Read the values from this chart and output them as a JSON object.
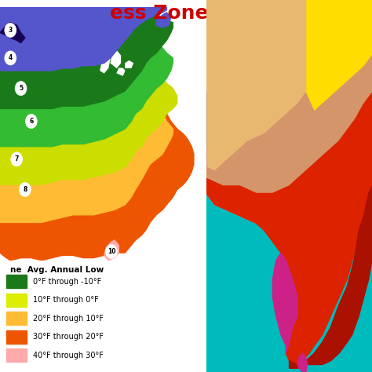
{
  "title": "ess Zone Map",
  "title_color": "#cc0000",
  "title_fontsize": 18,
  "background_color": "#ffffff",
  "fig_width": 4.74,
  "fig_height": 4.74,
  "dpi": 100,
  "legend_title": "ne  Avg. Annual Low",
  "legend_items": [
    {
      "color": "#1a7a1a",
      "label": "0°F through -10°F"
    },
    {
      "color": "#ddee00",
      "label": "10°F through 0°F"
    },
    {
      "color": "#ffcc33",
      "label": "20°F through 10°F"
    },
    {
      "color": "#ee5500",
      "label": "30°F through 20°F"
    },
    {
      "color": "#ffaaaa",
      "label": "40°F through 30°F"
    }
  ],
  "us_zones": {
    "zone3_color": "#1a0055",
    "zone4_color": "#5555cc",
    "zone5_color": "#1a7a1a",
    "zone6_color": "#33bb33",
    "zone7_color": "#ccdd00",
    "zone8_color": "#ffbb33",
    "zone9_color": "#ee5500",
    "zone10_color": "#ffaaaa"
  },
  "india_colors": {
    "background": "#cccccc",
    "ocean": "#00bbbb",
    "north_yellow": "#ffdd00",
    "north_tan1": "#e8b870",
    "north_tan2": "#d4956a",
    "north_tan3": "#c8a060",
    "red_main": "#dd2200",
    "red_dark": "#aa1100",
    "magenta": "#cc2288"
  }
}
